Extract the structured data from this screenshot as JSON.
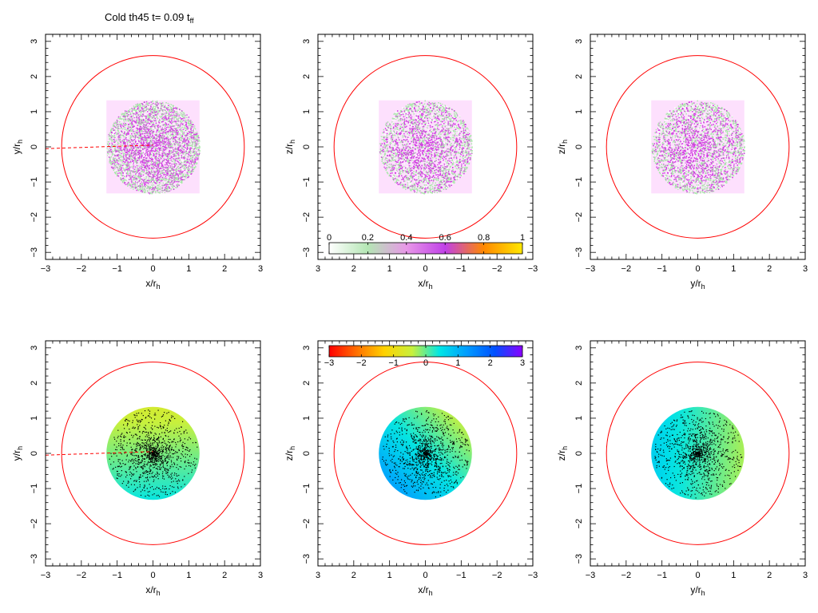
{
  "chart_data": {
    "type": "scatter",
    "title": {
      "main": "Cold th45 t= 0.09 t",
      "sub": "ff"
    },
    "ticks": [
      -3,
      -2,
      -1,
      0,
      1,
      2,
      3
    ],
    "xlim": [
      -3,
      3
    ],
    "ylim": [
      -3.2,
      3.2
    ],
    "circle_radius": 2.55,
    "cloud_radius": 1.3,
    "square_half_width": 1.3,
    "panels": [
      {
        "id": "top-xy",
        "row": 0,
        "col": 0,
        "xlabel": "x/r",
        "ylabel": "y/r",
        "label_sub": "h",
        "x_reversed": false,
        "colour_by": "density",
        "dashed_line": {
          "x": [
            -3.0,
            0.0
          ],
          "y": [
            -0.05,
            0.05
          ]
        }
      },
      {
        "id": "top-xz",
        "row": 0,
        "col": 1,
        "xlabel": "x/r",
        "ylabel": "z/r",
        "label_sub": "h",
        "x_reversed": true,
        "colour_by": "density"
      },
      {
        "id": "top-yz",
        "row": 0,
        "col": 2,
        "xlabel": "y/r",
        "ylabel": "z/r",
        "label_sub": "h",
        "x_reversed": false,
        "colour_by": "density"
      },
      {
        "id": "bottom-xy",
        "row": 1,
        "col": 0,
        "xlabel": "x/r",
        "ylabel": "y/r",
        "label_sub": "h",
        "x_reversed": false,
        "colour_by": "velocity",
        "velocity_gradient": {
          "from_value": -0.6,
          "to_value": 0.4,
          "axis": "y"
        },
        "dashed_line": {
          "x": [
            -3.0,
            0.0
          ],
          "y": [
            -0.05,
            0.05
          ]
        }
      },
      {
        "id": "bottom-xz",
        "row": 1,
        "col": 1,
        "xlabel": "x/r",
        "ylabel": "z/r",
        "label_sub": "h",
        "x_reversed": true,
        "colour_by": "velocity",
        "velocity_gradient": {
          "from_value": 1.5,
          "to_value": -0.7,
          "axis": "diagonal"
        }
      },
      {
        "id": "bottom-yz",
        "row": 1,
        "col": 2,
        "xlabel": "y/r",
        "ylabel": "z/r",
        "label_sub": "h",
        "x_reversed": false,
        "colour_by": "velocity",
        "velocity_gradient": {
          "from_value": 0.7,
          "to_value": -0.3,
          "axis": "x"
        }
      }
    ],
    "colorbars": [
      {
        "id": "density-colorbar",
        "ticks": [
          0,
          0.2,
          0.4,
          0.6,
          0.8,
          1
        ],
        "tick_labels": [
          "0",
          "0.2",
          "0.4",
          "0.6",
          "0.8",
          "1"
        ],
        "colors": [
          "#ffffff",
          "#b4e6b4",
          "#e898e8",
          "#c040e8",
          "#ff8800",
          "#ffe800"
        ]
      },
      {
        "id": "velocity-colorbar",
        "ticks": [
          -3,
          -2,
          -1,
          0,
          1,
          2,
          3
        ],
        "tick_labels": [
          "−3",
          "−2",
          "−1",
          "0",
          "1",
          "2",
          "3"
        ],
        "colors": [
          "#ff0000",
          "#ff7000",
          "#ffd200",
          "#c8f03c",
          "#00e6e6",
          "#009bff",
          "#0050ff",
          "#8a00ff"
        ]
      }
    ],
    "colors": {
      "circle": "#ff0000",
      "dashed_line": "#ff0000",
      "square_fill": "#fde0fd",
      "density_low": "#a8e8a8",
      "density_high": "#d040e0",
      "dots": "#000000"
    }
  }
}
